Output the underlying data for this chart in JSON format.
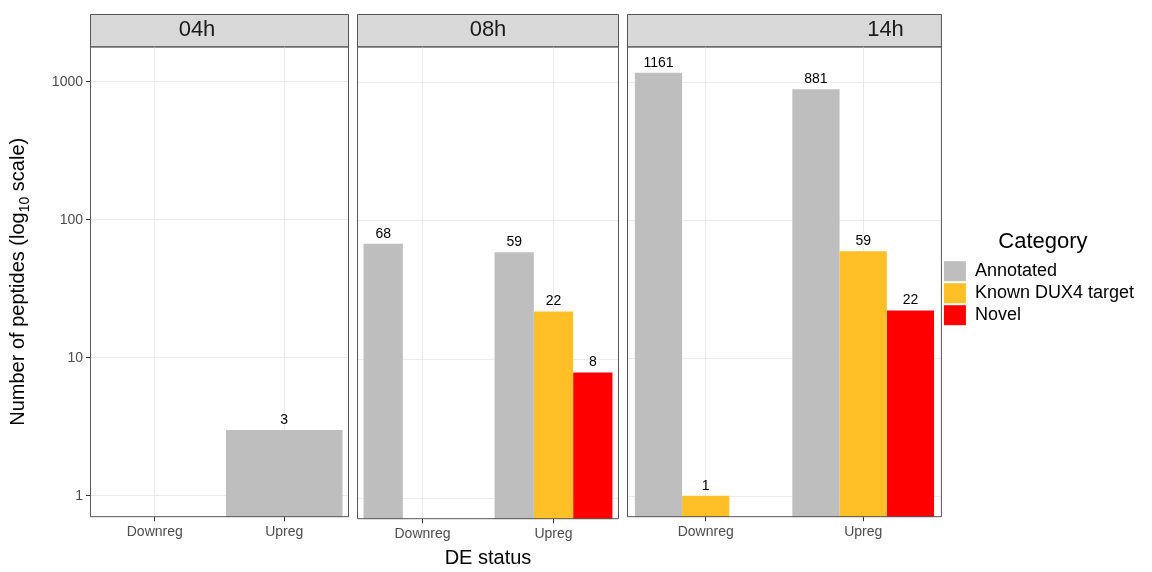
{
  "chart_data": [
    {
      "type": "bar",
      "title": "04h",
      "ylabel": "Number of peptides (log$_{10}$ scale)",
      "categories": [
        "Downreg",
        "Upreg"
      ],
      "series": [
        {
          "color": "#bebebe",
          "values": [
            null,
            3
          ]
        }
      ],
      "log": true,
      "ylim": [
        0.7,
        1800
      ],
      "yticks": [
        1,
        10,
        100,
        1000
      ],
      "grid": true,
      "data_labels": true
    },
    {
      "type": "bar",
      "title": "08h",
      "xlabel": "DE status",
      "categories": [
        "Downreg",
        "Upreg"
      ],
      "series": [
        {
          "color": "#bebebe",
          "values": [
            68,
            59
          ]
        },
        {
          "color": "#ffbf26",
          "values": [
            null,
            22
          ]
        },
        {
          "color": "#ff0000",
          "values": [
            null,
            8
          ]
        }
      ],
      "log": true,
      "ylim": [
        0.7,
        1800
      ],
      "yticks": [
        1,
        10,
        100,
        1000
      ],
      "grid": true,
      "data_labels": true,
      "tick_labels": "x"
    },
    {
      "type": "bar",
      "title": "14h",
      "categories": [
        "Downreg",
        "Upreg"
      ],
      "series": [
        {
          "name": "Annotated",
          "color": "#bebebe",
          "values": [
            1161,
            881
          ]
        },
        {
          "name": "Known DUX4 target",
          "color": "#ffbf26",
          "values": [
            1,
            59
          ]
        },
        {
          "name": "Novel",
          "color": "#ff0000",
          "values": [
            null,
            22
          ]
        }
      ],
      "log": true,
      "ylim": [
        0.7,
        1800
      ],
      "yticks": [
        1,
        10,
        100,
        1000
      ],
      "grid": true,
      "data_labels": true,
      "tick_labels": "x",
      "legend": "right",
      "legend_title": "Category"
    }
  ]
}
